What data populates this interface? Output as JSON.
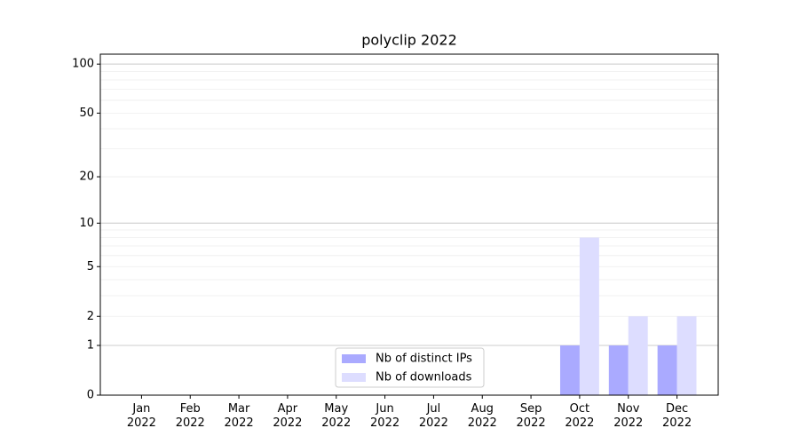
{
  "chart_data": {
    "type": "bar",
    "title": "polyclip 2022",
    "yscale": "log1p",
    "categories": [
      "Jan 2022",
      "Feb 2022",
      "Mar 2022",
      "Apr 2022",
      "May 2022",
      "Jun 2022",
      "Jul 2022",
      "Aug 2022",
      "Sep 2022",
      "Oct 2022",
      "Nov 2022",
      "Dec 2022"
    ],
    "series": [
      {
        "name": "Nb of distinct IPs",
        "color": "#aaaaff",
        "values": [
          0,
          0,
          0,
          0,
          0,
          0,
          0,
          0,
          0,
          1,
          1,
          1
        ]
      },
      {
        "name": "Nb of downloads",
        "color": "#ddddff",
        "values": [
          0,
          0,
          0,
          0,
          0,
          0,
          0,
          0,
          0,
          8,
          2,
          2
        ]
      }
    ],
    "ylim": [
      0,
      115
    ],
    "yticks": [
      0,
      1,
      2,
      5,
      10,
      20,
      50,
      100
    ],
    "minor_yticks": [
      3,
      4,
      6,
      7,
      8,
      9,
      30,
      40,
      60,
      70,
      80,
      90
    ],
    "major_grid": [
      1,
      10,
      100
    ],
    "grid": true,
    "legend": "lower center"
  }
}
